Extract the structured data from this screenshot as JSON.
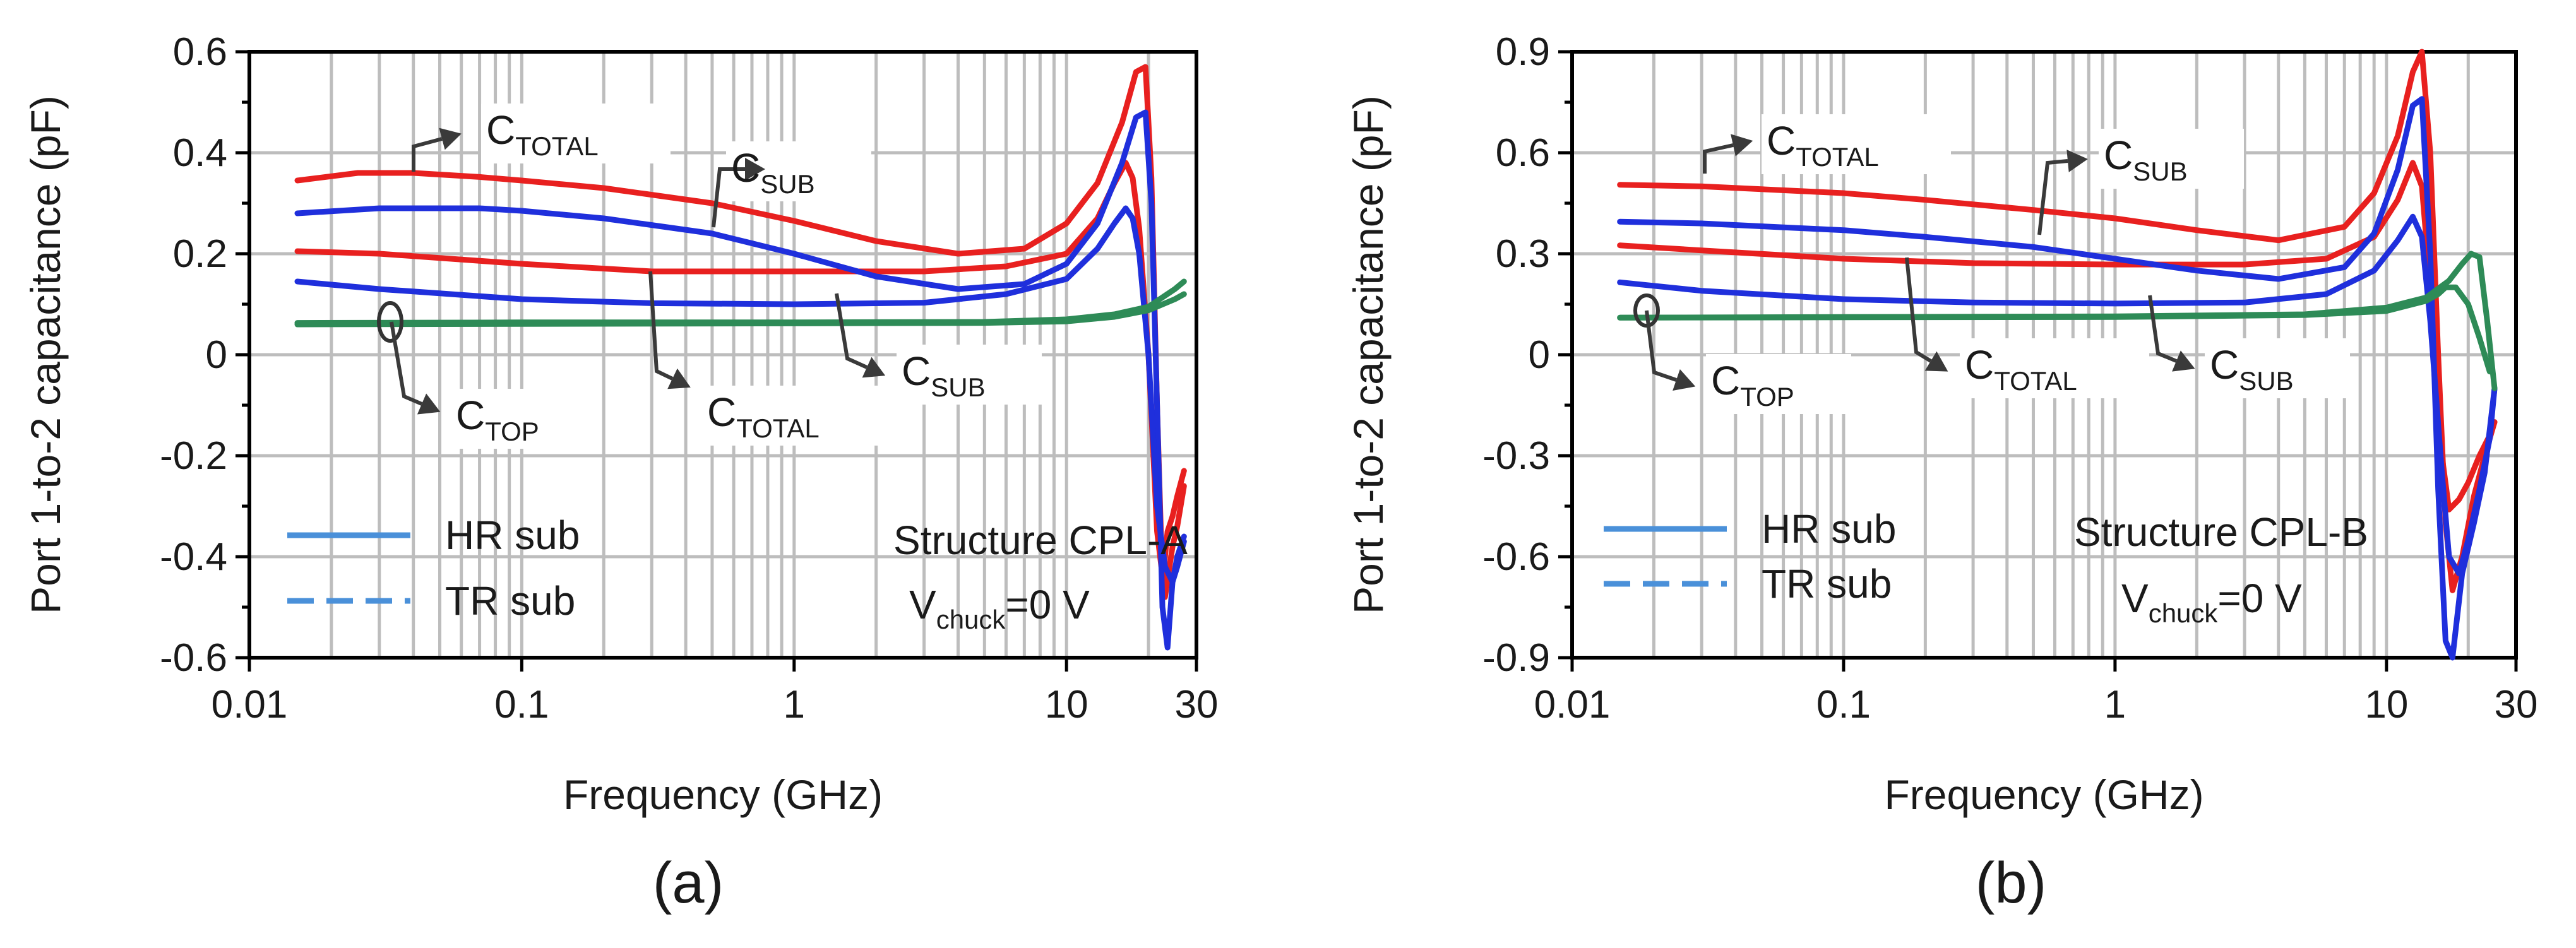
{
  "colors": {
    "red": "#e8201f",
    "blue": "#1f2fdc",
    "green": "#2e8b57",
    "legend_blue": "#4a90d9"
  },
  "chart_data": [
    {
      "id": "a",
      "type": "line",
      "caption": "(a)",
      "xlabel": "Frequency (GHz)",
      "ylabel": "Port 1-to-2 capacitance (pF)",
      "xscale": "log",
      "xlim": [
        0.01,
        30
      ],
      "ylim": [
        -0.6,
        0.6
      ],
      "xticks": [
        0.01,
        0.1,
        1,
        10,
        30
      ],
      "xtick_labels": [
        "0.01",
        "0.1",
        "1",
        "10",
        "30"
      ],
      "yticks": [
        -0.6,
        -0.4,
        -0.2,
        0,
        0.2,
        0.4,
        0.6
      ],
      "ytick_labels": [
        "-0.6",
        "-0.4",
        "-0.2",
        "0",
        "0.2",
        "0.4",
        "0.6"
      ],
      "structure_label": "Structure CPL-A",
      "vchuck_main": "V",
      "vchuck_sub": "chuck",
      "vchuck_rest": "=0 V",
      "legend": [
        {
          "label": "HR sub",
          "style": "solid"
        },
        {
          "label": "TR sub",
          "style": "dashed"
        }
      ],
      "annotations": [
        {
          "main": "C",
          "sub": "TOTAL"
        },
        {
          "main": "C",
          "sub": "SUB"
        },
        {
          "main": "C",
          "sub": "TOP"
        },
        {
          "main": "C",
          "sub": "TOTAL"
        },
        {
          "main": "C",
          "sub": "SUB"
        }
      ],
      "series": [
        {
          "name": "C_TOTAL HR",
          "color": "red",
          "x": [
            0.015,
            0.025,
            0.04,
            0.07,
            0.1,
            0.2,
            0.5,
            1,
            2,
            4,
            7,
            10,
            13,
            16,
            18,
            19.5,
            20.5,
            21.5,
            22.5,
            23.5,
            24.5,
            25.5,
            27
          ],
          "y": [
            0.345,
            0.36,
            0.36,
            0.352,
            0.345,
            0.33,
            0.3,
            0.265,
            0.225,
            0.2,
            0.21,
            0.26,
            0.34,
            0.46,
            0.56,
            0.57,
            0.35,
            -0.1,
            -0.45,
            -0.35,
            -0.32,
            -0.28,
            -0.23
          ]
        },
        {
          "name": "C_TOTAL TR",
          "color": "red",
          "x": [
            0.015,
            0.03,
            0.1,
            0.3,
            1,
            3,
            6,
            10,
            13,
            15,
            16.5,
            17.5,
            18.5,
            20,
            21.5,
            23,
            24.5,
            25.5,
            27
          ],
          "y": [
            0.205,
            0.2,
            0.18,
            0.165,
            0.165,
            0.165,
            0.175,
            0.2,
            0.27,
            0.34,
            0.38,
            0.35,
            0.25,
            0.0,
            -0.35,
            -0.48,
            -0.38,
            -0.34,
            -0.26
          ]
        },
        {
          "name": "C_SUB HR",
          "color": "blue",
          "x": [
            0.015,
            0.03,
            0.07,
            0.1,
            0.2,
            0.5,
            1,
            2,
            4,
            7,
            10,
            13,
            16,
            18,
            19.5,
            20.5,
            21.5,
            22.5,
            23.5,
            24.5,
            25.5,
            27
          ],
          "y": [
            0.28,
            0.29,
            0.29,
            0.285,
            0.27,
            0.24,
            0.2,
            0.155,
            0.13,
            0.14,
            0.18,
            0.26,
            0.38,
            0.47,
            0.48,
            0.3,
            -0.1,
            -0.5,
            -0.58,
            -0.45,
            -0.42,
            -0.37
          ]
        },
        {
          "name": "C_SUB TR",
          "color": "blue",
          "x": [
            0.015,
            0.03,
            0.1,
            0.3,
            1,
            3,
            6,
            10,
            13,
            15,
            16.5,
            17.5,
            18.5,
            20,
            21.5,
            23,
            24.5,
            25.5,
            27
          ],
          "y": [
            0.145,
            0.13,
            0.11,
            0.102,
            0.1,
            0.103,
            0.12,
            0.15,
            0.21,
            0.26,
            0.29,
            0.27,
            0.2,
            0.0,
            -0.3,
            -0.42,
            -0.45,
            -0.4,
            -0.36
          ]
        },
        {
          "name": "C_TOP HR",
          "color": "green",
          "x": [
            0.015,
            0.1,
            1,
            5,
            10,
            15,
            20,
            25,
            27
          ],
          "y": [
            0.063,
            0.064,
            0.064,
            0.065,
            0.07,
            0.08,
            0.095,
            0.13,
            0.145
          ]
        },
        {
          "name": "C_TOP TR",
          "color": "green",
          "x": [
            0.015,
            0.1,
            1,
            5,
            10,
            15,
            20,
            25,
            27
          ],
          "y": [
            0.06,
            0.061,
            0.062,
            0.063,
            0.066,
            0.075,
            0.088,
            0.11,
            0.12
          ]
        }
      ]
    },
    {
      "id": "b",
      "type": "line",
      "caption": "(b)",
      "xlabel": "Frequency (GHz)",
      "ylabel": "Port 1-to-2 capacitance (pF)",
      "xscale": "log",
      "xlim": [
        0.01,
        30
      ],
      "ylim": [
        -0.9,
        0.9
      ],
      "xticks": [
        0.01,
        0.1,
        1,
        10,
        30
      ],
      "xtick_labels": [
        "0.01",
        "0.1",
        "1",
        "10",
        "30"
      ],
      "yticks": [
        -0.9,
        -0.6,
        -0.3,
        0,
        0.3,
        0.6,
        0.9
      ],
      "ytick_labels": [
        "-0.9",
        "-0.6",
        "-0.3",
        "0",
        "0.3",
        "0.6",
        "0.9"
      ],
      "structure_label": "Structure CPL-B",
      "vchuck_main": "V",
      "vchuck_sub": "chuck",
      "vchuck_rest": "=0 V",
      "legend": [
        {
          "label": "HR sub",
          "style": "solid"
        },
        {
          "label": "TR sub",
          "style": "dashed"
        }
      ],
      "annotations": [
        {
          "main": "C",
          "sub": "TOTAL"
        },
        {
          "main": "C",
          "sub": "SUB"
        },
        {
          "main": "C",
          "sub": "TOP"
        },
        {
          "main": "C",
          "sub": "TOTAL"
        },
        {
          "main": "C",
          "sub": "SUB"
        }
      ],
      "series": [
        {
          "name": "C_TOTAL HR",
          "color": "red",
          "x": [
            0.015,
            0.03,
            0.1,
            0.2,
            0.5,
            1,
            2,
            4,
            7,
            9,
            11,
            12.5,
            13.5,
            14.5,
            15.5,
            16.5,
            17.5,
            19,
            21,
            23,
            25
          ],
          "y": [
            0.505,
            0.5,
            0.48,
            0.46,
            0.43,
            0.405,
            0.37,
            0.34,
            0.38,
            0.48,
            0.65,
            0.84,
            0.9,
            0.6,
            0.0,
            -0.5,
            -0.7,
            -0.6,
            -0.42,
            -0.3,
            -0.2
          ]
        },
        {
          "name": "C_TOTAL TR",
          "color": "red",
          "x": [
            0.015,
            0.03,
            0.1,
            0.3,
            1,
            3,
            6,
            9,
            11,
            12.5,
            13.5,
            14.5,
            16,
            17,
            18.5,
            20,
            22,
            24,
            25
          ],
          "y": [
            0.325,
            0.31,
            0.285,
            0.272,
            0.268,
            0.268,
            0.285,
            0.35,
            0.46,
            0.57,
            0.5,
            0.2,
            -0.3,
            -0.46,
            -0.43,
            -0.38,
            -0.3,
            -0.24,
            -0.2
          ]
        },
        {
          "name": "C_SUB HR",
          "color": "blue",
          "x": [
            0.015,
            0.03,
            0.1,
            0.2,
            0.5,
            1,
            2,
            4,
            7,
            9,
            11,
            12.5,
            13.5,
            14.5,
            15.5,
            16.5,
            17.5,
            19,
            21,
            23,
            25
          ],
          "y": [
            0.395,
            0.39,
            0.37,
            0.35,
            0.32,
            0.285,
            0.25,
            0.225,
            0.26,
            0.36,
            0.55,
            0.74,
            0.76,
            0.3,
            -0.4,
            -0.85,
            -0.9,
            -0.65,
            -0.5,
            -0.35,
            -0.1
          ]
        },
        {
          "name": "C_SUB TR",
          "color": "blue",
          "x": [
            0.015,
            0.03,
            0.1,
            0.3,
            1,
            3,
            6,
            9,
            11,
            12.5,
            13.5,
            14.5,
            16,
            17,
            18.5,
            20,
            22,
            24,
            25
          ],
          "y": [
            0.215,
            0.19,
            0.165,
            0.155,
            0.152,
            0.155,
            0.18,
            0.25,
            0.34,
            0.41,
            0.35,
            0.1,
            -0.35,
            -0.6,
            -0.65,
            -0.55,
            -0.4,
            -0.25,
            -0.1
          ]
        },
        {
          "name": "C_TOP HR",
          "color": "green",
          "x": [
            0.015,
            0.1,
            1,
            5,
            10,
            14,
            17,
            19,
            20.5,
            22,
            23.5,
            25
          ],
          "y": [
            0.11,
            0.112,
            0.114,
            0.12,
            0.14,
            0.17,
            0.22,
            0.27,
            0.3,
            0.29,
            0.1,
            -0.1
          ]
        },
        {
          "name": "C_TOP TR",
          "color": "green",
          "x": [
            0.015,
            0.1,
            1,
            5,
            10,
            14,
            15.5,
            16.5,
            18,
            20,
            22,
            24
          ],
          "y": [
            0.11,
            0.111,
            0.112,
            0.118,
            0.13,
            0.16,
            0.18,
            0.2,
            0.2,
            0.15,
            0.05,
            -0.05
          ]
        }
      ]
    }
  ]
}
